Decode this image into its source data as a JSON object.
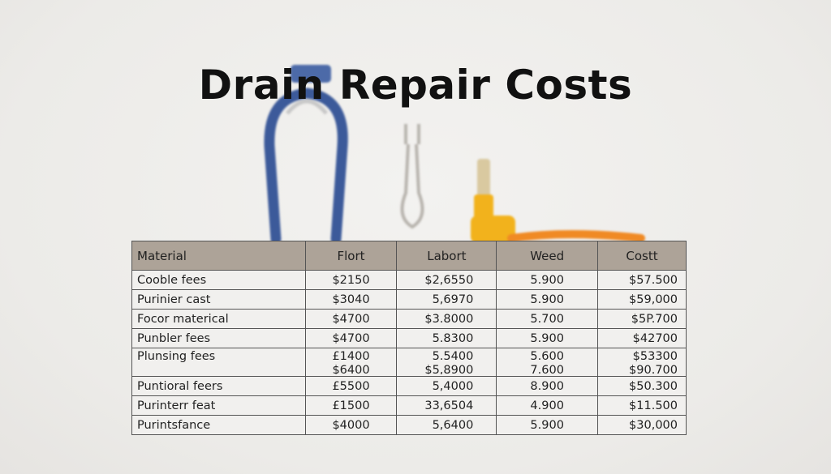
{
  "title": "Drain Repair Costs",
  "table": {
    "headers": [
      "Material",
      "Flort",
      "Labort",
      "Weed",
      "Costt"
    ],
    "rows": [
      {
        "cells": [
          "Cooble fees",
          "$2150",
          "$2,6550",
          "5.900",
          "$57.500"
        ]
      },
      {
        "cells": [
          "Purinier cast",
          "$3040",
          "5,6970",
          "5.900",
          "$59,000"
        ]
      },
      {
        "cells": [
          "Focor materical",
          "$4700",
          "$3.8000",
          "5.700",
          "$5P.700"
        ]
      },
      {
        "cells": [
          "Punbler fees",
          "$4700",
          "5.8300",
          "5.900",
          "$42700"
        ]
      },
      {
        "cells": [
          "Plunsing fees",
          "£1400",
          "5.5400",
          "5.600",
          "$53300"
        ],
        "extra": [
          "",
          "$6400",
          "$5,8900",
          "7.600",
          "$90.700"
        ]
      },
      {
        "cells": [
          "Puntioral feers",
          "£5500",
          "5,4000",
          "8.900",
          "$50.300"
        ]
      },
      {
        "cells": [
          "Purinterr feat",
          "£1500",
          "33,6504",
          "4.900",
          "$11.500"
        ]
      },
      {
        "cells": [
          "Purintsfance",
          "$4000",
          "5,6400",
          "5.900",
          "$30,000"
        ]
      }
    ]
  },
  "colors": {
    "header_bg": "#ada398",
    "cell_bg": "#f1f0ee",
    "tool_blue": "#3c5a9a",
    "tool_yellow": "#f2b21c",
    "tool_orange": "#f08a24"
  }
}
